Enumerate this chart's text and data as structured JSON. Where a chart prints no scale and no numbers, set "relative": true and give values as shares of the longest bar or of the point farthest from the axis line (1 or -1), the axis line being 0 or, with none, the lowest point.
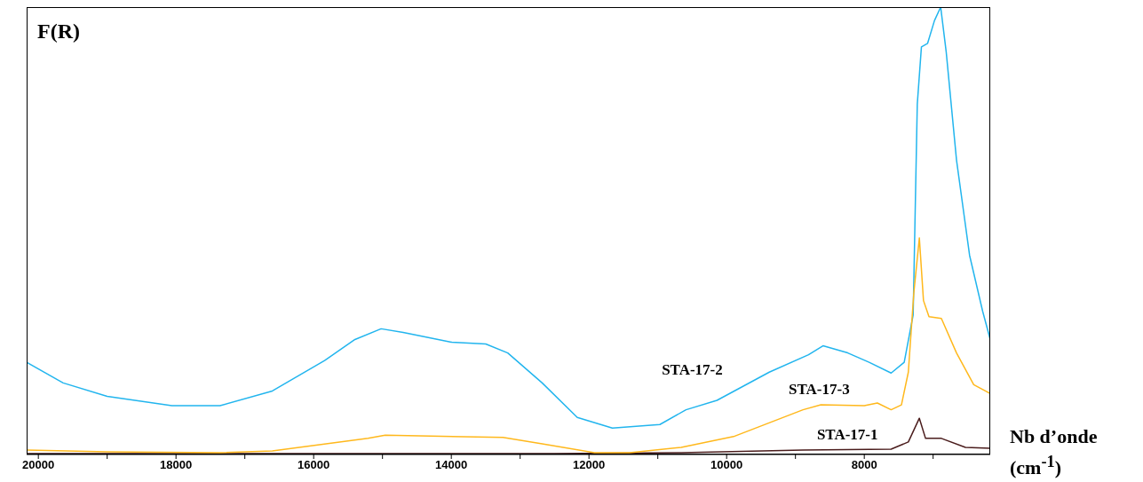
{
  "chart_data": {
    "type": "line",
    "ylabel": "F(R)",
    "xlabel": "Nb d’onde (cm$^{-1}$)",
    "relative": true,
    "grid": false,
    "legend": false,
    "marker": "none",
    "line_style": "solid",
    "xlim": [
      20170,
      6170
    ],
    "xticks": [
      20000,
      {
        "value": 19000,
        "label": null
      },
      18000,
      {
        "value": 17000,
        "label": null
      },
      16000,
      {
        "value": 15000,
        "label": null
      },
      14000,
      {
        "value": 13000,
        "label": null
      },
      12000,
      {
        "value": 11000,
        "label": null
      },
      10000,
      {
        "value": 9000,
        "label": null
      },
      8000,
      {
        "value": 7000,
        "label": null
      }
    ],
    "series": [
      {
        "name": "STA-17-1",
        "color": "#4a1c1c",
        "x": [
          20170,
          15900,
          12500,
          10660,
          8890,
          7610,
          7360,
          7200,
          7110,
          6880,
          6530,
          6170
        ],
        "values": [
          0.002,
          0.002,
          0.002,
          0.004,
          0.01,
          0.012,
          0.028,
          0.081,
          0.036,
          0.036,
          0.016,
          0.014
        ]
      },
      {
        "name": "STA-17-2",
        "color": "#22b5ee",
        "x": [
          20170,
          19640,
          19000,
          18060,
          17360,
          16600,
          15840,
          15400,
          15020,
          14700,
          14000,
          13500,
          13180,
          12680,
          12170,
          11660,
          10970,
          10590,
          10140,
          9380,
          8810,
          8600,
          8240,
          7930,
          7610,
          7420,
          7290,
          7230,
          7170,
          7080,
          6980,
          6890,
          6810,
          6660,
          6470,
          6280,
          6170
        ],
        "values": [
          0.206,
          0.16,
          0.13,
          0.109,
          0.109,
          0.142,
          0.21,
          0.257,
          0.281,
          0.273,
          0.251,
          0.247,
          0.227,
          0.16,
          0.083,
          0.059,
          0.067,
          0.1,
          0.121,
          0.184,
          0.223,
          0.243,
          0.227,
          0.206,
          0.182,
          0.206,
          0.312,
          0.783,
          0.911,
          0.919,
          0.97,
          1,
          0.9,
          0.658,
          0.445,
          0.32,
          0.257
        ]
      },
      {
        "name": "STA-17-3",
        "color": "#ffb81c",
        "x": [
          20170,
          19000,
          17360,
          16600,
          15210,
          14960,
          13250,
          12680,
          11920,
          11410,
          10660,
          9900,
          8890,
          8630,
          8000,
          7810,
          7610,
          7460,
          7360,
          7280,
          7200,
          7140,
          7060,
          6880,
          6660,
          6410,
          6170
        ],
        "values": [
          0.01,
          0.006,
          0.004,
          0.008,
          0.036,
          0.043,
          0.038,
          0.024,
          0.004,
          0.004,
          0.016,
          0.04,
          0.1,
          0.111,
          0.109,
          0.115,
          0.1,
          0.111,
          0.184,
          0.362,
          0.484,
          0.344,
          0.308,
          0.304,
          0.227,
          0.156,
          0.136
        ]
      }
    ]
  }
}
